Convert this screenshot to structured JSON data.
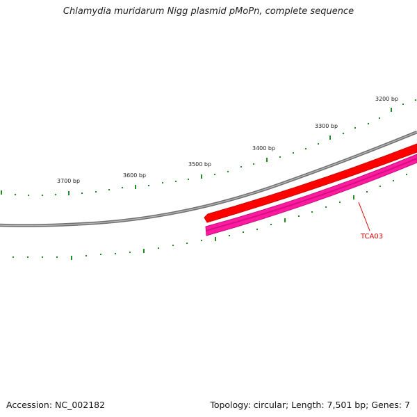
{
  "title": "Chlamydia muridarum Nigg plasmid pMoPn, complete sequence",
  "scale": {
    "tick_labels": [
      "3200 bp",
      "3300 bp",
      "3400 bp",
      "3500 bp",
      "3600 bp",
      "3700 bp"
    ]
  },
  "features": [
    {
      "label": "TCA03",
      "color": "#e00000"
    }
  ],
  "footer": {
    "accession": "Accession: NC_002182",
    "topology": "Topology: circular; Length: 7,501 bp; Genes: 7"
  },
  "colors": {
    "backbone": "#888888",
    "forward_feature": "#ff0000",
    "reverse_feature": "#ff1493",
    "ticks": "#228b22",
    "label": "#e00000"
  }
}
